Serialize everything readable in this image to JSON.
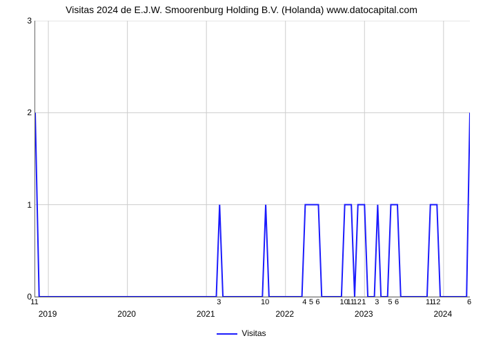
{
  "chart": {
    "type": "line",
    "title": "Visitas 2024 de E.J.W. Smoorenburg Holding B.V. (Holanda) www.datocapital.com",
    "title_fontsize": 14,
    "background_color": "#ffffff",
    "line_color": "#1a1afc",
    "line_width": 2,
    "grid_color": "#cccccc",
    "axis_color": "#666666",
    "ylim": [
      0,
      3
    ],
    "yticks": [
      0,
      1,
      2,
      3
    ],
    "x_range_units": 66,
    "x_major_ticks": [
      {
        "pos": 2,
        "label": "2019"
      },
      {
        "pos": 14,
        "label": "2020"
      },
      {
        "pos": 26,
        "label": "2021"
      },
      {
        "pos": 38,
        "label": "2022"
      },
      {
        "pos": 50,
        "label": "2023"
      },
      {
        "pos": 62,
        "label": "2024"
      }
    ],
    "x_minor_ticks": [
      {
        "pos": 0,
        "label": "11"
      },
      {
        "pos": 28,
        "label": "3"
      },
      {
        "pos": 35,
        "label": "10"
      },
      {
        "pos": 41,
        "label": "4"
      },
      {
        "pos": 42,
        "label": "5"
      },
      {
        "pos": 43,
        "label": "6"
      },
      {
        "pos": 47,
        "label": "10"
      },
      {
        "pos": 48,
        "label": "11"
      },
      {
        "pos": 49,
        "label": "12"
      },
      {
        "pos": 50,
        "label": "1"
      },
      {
        "pos": 52,
        "label": "3"
      },
      {
        "pos": 54,
        "label": "5"
      },
      {
        "pos": 55,
        "label": "6"
      },
      {
        "pos": 60,
        "label": "11"
      },
      {
        "pos": 61,
        "label": "12"
      },
      {
        "pos": 66,
        "label": "6"
      }
    ],
    "data_points": [
      {
        "x": 0,
        "y": 2
      },
      {
        "x": 0.6,
        "y": 0
      },
      {
        "x": 27.5,
        "y": 0
      },
      {
        "x": 28,
        "y": 1
      },
      {
        "x": 28.5,
        "y": 0
      },
      {
        "x": 34.5,
        "y": 0
      },
      {
        "x": 35,
        "y": 1
      },
      {
        "x": 35.5,
        "y": 0
      },
      {
        "x": 40.5,
        "y": 0
      },
      {
        "x": 41,
        "y": 1
      },
      {
        "x": 43,
        "y": 1
      },
      {
        "x": 43.5,
        "y": 0
      },
      {
        "x": 46.5,
        "y": 0
      },
      {
        "x": 47,
        "y": 1
      },
      {
        "x": 48,
        "y": 1
      },
      {
        "x": 48.5,
        "y": 0
      },
      {
        "x": 49,
        "y": 1
      },
      {
        "x": 50,
        "y": 1
      },
      {
        "x": 50.5,
        "y": 0
      },
      {
        "x": 51.5,
        "y": 0
      },
      {
        "x": 52,
        "y": 1
      },
      {
        "x": 52.5,
        "y": 0
      },
      {
        "x": 53.5,
        "y": 0
      },
      {
        "x": 54,
        "y": 1
      },
      {
        "x": 55,
        "y": 1
      },
      {
        "x": 55.5,
        "y": 0
      },
      {
        "x": 59.5,
        "y": 0
      },
      {
        "x": 60,
        "y": 1
      },
      {
        "x": 61,
        "y": 1
      },
      {
        "x": 61.5,
        "y": 0
      },
      {
        "x": 65.5,
        "y": 0
      },
      {
        "x": 66,
        "y": 2
      }
    ],
    "legend_label": "Visitas"
  }
}
